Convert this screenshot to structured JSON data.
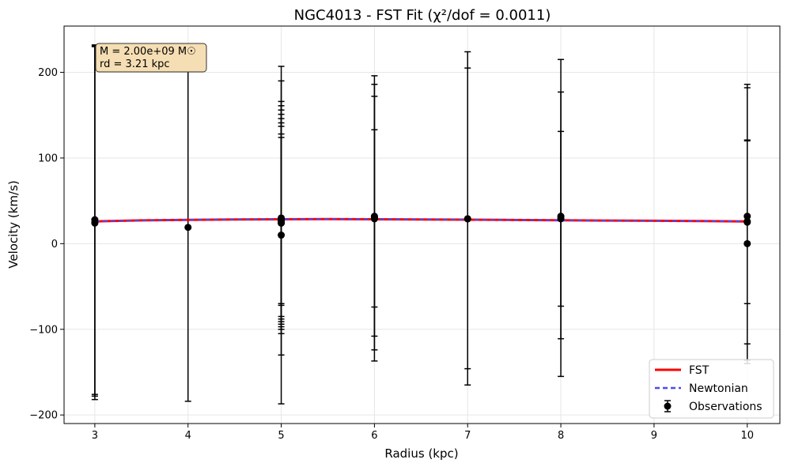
{
  "chart_data": {
    "type": "scatter",
    "title": "NGC4013 - FST Fit (χ²/dof = 0.0011)",
    "xlabel": "Radius (kpc)",
    "ylabel": "Velocity (km/s)",
    "xlim": [
      2.67,
      10.35
    ],
    "ylim": [
      -210,
      254
    ],
    "xticks": [
      3,
      4,
      5,
      6,
      7,
      8,
      9,
      10
    ],
    "yticks": [
      -200,
      -100,
      0,
      100,
      200
    ],
    "xtick_labels": [
      "3",
      "4",
      "5",
      "6",
      "7",
      "8",
      "9",
      "10"
    ],
    "ytick_labels": [
      "−200",
      "−100",
      "0",
      "100",
      "200"
    ],
    "grid": true,
    "legend_position": "lower-right",
    "annotation": [
      "M = 2.00e+09 M☉",
      "rd = 3.21 kpc"
    ],
    "series": [
      {
        "name": "FST",
        "kind": "line",
        "color": "#ff0000",
        "x": [
          3,
          3.5,
          4,
          4.5,
          5,
          5.5,
          6,
          6.5,
          7,
          7.5,
          8,
          8.5,
          9,
          9.5,
          10
        ],
        "y": [
          26,
          27.2,
          27.8,
          28.2,
          28.5,
          28.6,
          28.5,
          28.3,
          28,
          27.6,
          27.3,
          27,
          26.7,
          26.4,
          26
        ]
      },
      {
        "name": "Newtonian",
        "kind": "dashed-line",
        "color": "#4a4aee",
        "x": [
          3,
          3.5,
          4,
          4.5,
          5,
          5.5,
          6,
          6.5,
          7,
          7.5,
          8,
          8.5,
          9,
          9.5,
          10
        ],
        "y": [
          26,
          27.2,
          27.8,
          28.2,
          28.5,
          28.6,
          28.5,
          28.3,
          28,
          27.6,
          27.3,
          27,
          26.7,
          26.4,
          26
        ]
      },
      {
        "name": "Observations",
        "kind": "errorbar",
        "color": "#000000",
        "points": [
          {
            "x": 3,
            "y": 28,
            "lo": -182,
            "hi": 232
          },
          {
            "x": 3,
            "y": 25,
            "lo": -178,
            "hi": 230
          },
          {
            "x": 3,
            "y": 24,
            "lo": -176,
            "hi": 231
          },
          {
            "x": 4,
            "y": 19,
            "lo": -184,
            "hi": 222
          },
          {
            "x": 5,
            "y": 30,
            "lo": -187,
            "hi": 207
          },
          {
            "x": 5,
            "y": 28,
            "lo": -130,
            "hi": 190
          },
          {
            "x": 5,
            "y": 27,
            "lo": -105,
            "hi": 166
          },
          {
            "x": 5,
            "y": 26,
            "lo": -100,
            "hi": 161
          },
          {
            "x": 5,
            "y": 26,
            "lo": -97,
            "hi": 156
          },
          {
            "x": 5,
            "y": 25,
            "lo": -94,
            "hi": 151
          },
          {
            "x": 5,
            "y": 25,
            "lo": -91,
            "hi": 146
          },
          {
            "x": 5,
            "y": 25,
            "lo": -88,
            "hi": 141
          },
          {
            "x": 5,
            "y": 24,
            "lo": -85,
            "hi": 137
          },
          {
            "x": 5,
            "y": 24,
            "lo": -72,
            "hi": 128
          },
          {
            "x": 5,
            "y": 10,
            "lo": -70,
            "hi": 124
          },
          {
            "x": 6,
            "y": 32,
            "lo": -137,
            "hi": 196
          },
          {
            "x": 6,
            "y": 31,
            "lo": -124,
            "hi": 186
          },
          {
            "x": 6,
            "y": 30,
            "lo": -108,
            "hi": 172
          },
          {
            "x": 6,
            "y": 29,
            "lo": -74,
            "hi": 133
          },
          {
            "x": 7,
            "y": 29,
            "lo": -165,
            "hi": 224
          },
          {
            "x": 7,
            "y": 29,
            "lo": -146,
            "hi": 205
          },
          {
            "x": 8,
            "y": 32,
            "lo": -155,
            "hi": 215
          },
          {
            "x": 8,
            "y": 30,
            "lo": -111,
            "hi": 177
          },
          {
            "x": 8,
            "y": 29,
            "lo": -73,
            "hi": 131
          },
          {
            "x": 10,
            "y": 32,
            "lo": -136,
            "hi": 186
          },
          {
            "x": 10,
            "y": 26,
            "lo": -117,
            "hi": 182
          },
          {
            "x": 10,
            "y": 25,
            "lo": -70,
            "hi": 121
          },
          {
            "x": 10,
            "y": 0,
            "lo": -140,
            "hi": 120
          }
        ]
      }
    ]
  }
}
